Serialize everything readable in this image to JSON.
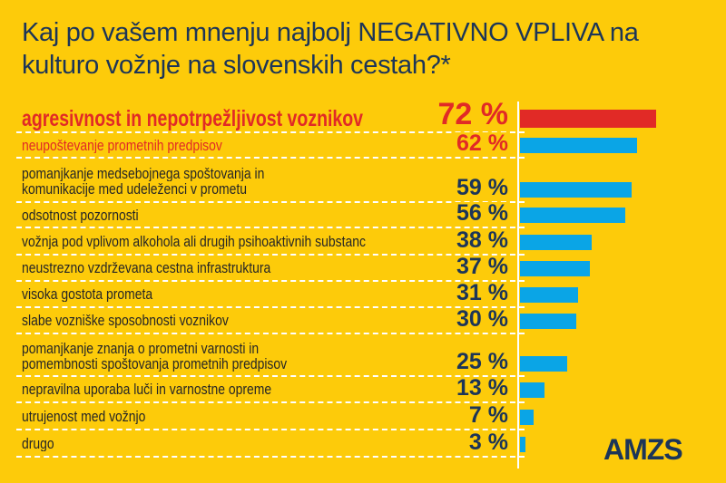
{
  "colors": {
    "background": "#FDCB0A",
    "title": "#1C3558",
    "highlight": "#E12A26",
    "bar": "#0AA5E6",
    "bar_top": "#E12A26"
  },
  "logo": "AMZS",
  "chart_data": {
    "type": "bar",
    "orientation": "horizontal",
    "title": "Kaj po vašem mnenju najbolj NEGATIVNO VPLIVA na kulturo vožnje na slovenskih cestah?*",
    "categories": [
      "agresivnost in nepotrpežljivost voznikov",
      "neupoštevanje prometnih predpisov",
      "pomanjkanje medsebojnega spoštovanja in komunikacije med udeleženci v prometu",
      "odsotnost pozornosti",
      "vožnja pod vplivom alkohola ali drugih psihoaktivnih substanc",
      "neustrezno vzdrževana cestna infrastruktura",
      "visoka gostota prometa",
      "slabe vozniške sposobnosti voznikov",
      "pomanjkanje znanja o prometni varnosti in pomembnosti spoštovanja prometnih predpisov",
      "nepravilna uporaba luči in varnostne opreme",
      "utrujenost med vožnjo",
      "drugo"
    ],
    "label_lines": [
      [
        "agresivnost in nepotrpežljivost voznikov"
      ],
      [
        "neupoštevanje prometnih predpisov"
      ],
      [
        "pomanjkanje medsebojnega spoštovanja in",
        "komunikacije med udeleženci v prometu"
      ],
      [
        "odsotnost pozornosti"
      ],
      [
        "vožnja pod vplivom alkohola ali drugih psihoaktivnih substanc"
      ],
      [
        "neustrezno vzdrževana cestna infrastruktura"
      ],
      [
        "visoka gostota prometa"
      ],
      [
        "slabe vozniške sposobnosti voznikov"
      ],
      [
        "pomanjkanje znanja o prometni varnosti in",
        "pomembnosti spoštovanja prometnih predpisov"
      ],
      [
        "nepravilna uporaba luči in varnostne opreme"
      ],
      [
        "utrujenost med vožnjo"
      ],
      [
        "drugo"
      ]
    ],
    "values": [
      72,
      62,
      59,
      56,
      38,
      37,
      31,
      30,
      25,
      13,
      7,
      3
    ],
    "value_labels": [
      "72 %",
      "62 %",
      "59 %",
      "56 %",
      "38 %",
      "37 %",
      "31 %",
      "30 %",
      "25 %",
      "13 %",
      "7 %",
      "3 %"
    ],
    "unit": "%",
    "highlighted": [
      0,
      1
    ],
    "xlim": [
      0,
      100
    ],
    "grid": false,
    "legend": "none"
  }
}
